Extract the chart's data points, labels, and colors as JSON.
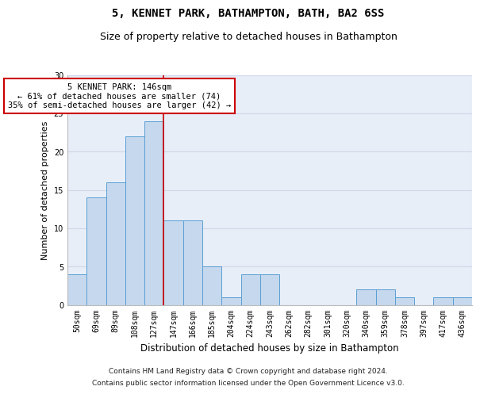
{
  "title1": "5, KENNET PARK, BATHAMPTON, BATH, BA2 6SS",
  "title2": "Size of property relative to detached houses in Bathampton",
  "xlabel": "Distribution of detached houses by size in Bathampton",
  "ylabel": "Number of detached properties",
  "categories": [
    "50sqm",
    "69sqm",
    "89sqm",
    "108sqm",
    "127sqm",
    "147sqm",
    "166sqm",
    "185sqm",
    "204sqm",
    "224sqm",
    "243sqm",
    "262sqm",
    "282sqm",
    "301sqm",
    "320sqm",
    "340sqm",
    "359sqm",
    "378sqm",
    "397sqm",
    "417sqm",
    "436sqm"
  ],
  "values": [
    4,
    14,
    16,
    22,
    24,
    11,
    11,
    5,
    1,
    4,
    4,
    0,
    0,
    0,
    0,
    2,
    2,
    1,
    0,
    1,
    1
  ],
  "bar_color": "#c5d8ed",
  "bar_edge_color": "#5a9fd4",
  "vline_x_index": 5,
  "annotation_text": "5 KENNET PARK: 146sqm\n← 61% of detached houses are smaller (74)\n35% of semi-detached houses are larger (42) →",
  "annotation_box_color": "#ffffff",
  "annotation_box_edge_color": "#cc0000",
  "vline_color": "#cc0000",
  "ylim": [
    0,
    30
  ],
  "yticks": [
    0,
    5,
    10,
    15,
    20,
    25,
    30
  ],
  "grid_color": "#d0d8e8",
  "background_color": "#e8eef8",
  "footer1": "Contains HM Land Registry data © Crown copyright and database right 2024.",
  "footer2": "Contains public sector information licensed under the Open Government Licence v3.0.",
  "title1_fontsize": 10,
  "title2_fontsize": 9,
  "tick_fontsize": 7,
  "ylabel_fontsize": 8,
  "xlabel_fontsize": 8.5,
  "footer_fontsize": 6.5,
  "annotation_fontsize": 7.5
}
